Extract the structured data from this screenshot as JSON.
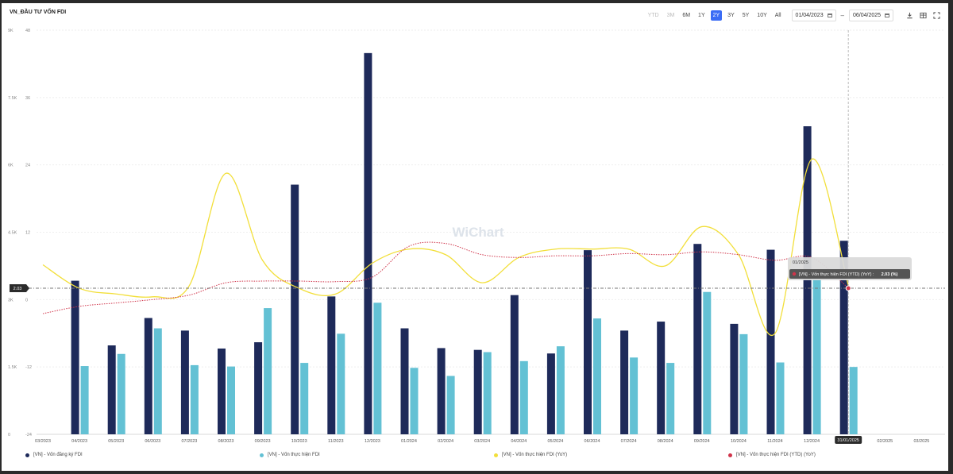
{
  "title": "VN_ĐẦU TƯ VỐN FDI",
  "toolbar": {
    "ranges": [
      {
        "label": "YTD",
        "state": "disabled"
      },
      {
        "label": "3M",
        "state": "disabled"
      },
      {
        "label": "6M",
        "state": "normal"
      },
      {
        "label": "1Y",
        "state": "normal"
      },
      {
        "label": "2Y",
        "state": "active"
      },
      {
        "label": "3Y",
        "state": "normal"
      },
      {
        "label": "5Y",
        "state": "normal"
      },
      {
        "label": "10Y",
        "state": "normal"
      },
      {
        "label": "All",
        "state": "normal"
      }
    ],
    "date_from": "01/04/2023",
    "date_separator": "–",
    "date_to": "06/04/2025",
    "icons": [
      "download-icon",
      "table-icon",
      "fullscreen-icon"
    ]
  },
  "watermark": "WiChart",
  "colors": {
    "registered": "#1e2a5a",
    "realized": "#63c1d4",
    "realized_yoy": "#f2df3a",
    "realized_ytd_yoy": "#d0344a",
    "accent": "#3b6cf5"
  },
  "chart_data": {
    "type": "bar",
    "categories": [
      "03/2023",
      "04/2023",
      "05/2023",
      "06/2023",
      "07/2023",
      "08/2023",
      "09/2023",
      "10/2023",
      "11/2023",
      "12/2023",
      "01/2024",
      "02/2024",
      "03/2024",
      "04/2024",
      "05/2024",
      "06/2024",
      "07/2024",
      "08/2024",
      "09/2024",
      "10/2024",
      "11/2024",
      "12/2024",
      "01/2025",
      "02/2025",
      "03/2025"
    ],
    "left_axis": {
      "ticks": [
        "0",
        "1.5K",
        "3K",
        "4.5K",
        "6K",
        "7.5K",
        "9K"
      ],
      "range": [
        0,
        9000
      ]
    },
    "right_axis": {
      "ticks": [
        "-24",
        "-12",
        "0",
        "12",
        "24",
        "36",
        "48"
      ],
      "range": [
        -24,
        48
      ]
    },
    "series": [
      {
        "name": "[VN] - Vốn đăng ký FDI",
        "type": "bar",
        "axis": "left",
        "values": [
          null,
          3420,
          1980,
          2590,
          2310,
          1910,
          2050,
          5560,
          3070,
          8490,
          2360,
          1920,
          1880,
          3100,
          1800,
          4100,
          2310,
          2510,
          4240,
          2460,
          4110,
          6860,
          4310,
          null,
          null
        ]
      },
      {
        "name": "[VN] - Vốn thực hiện FDI",
        "type": "bar",
        "axis": "left",
        "values": [
          null,
          1520,
          1790,
          2360,
          1540,
          1510,
          2810,
          1590,
          2240,
          2930,
          1480,
          1300,
          1830,
          1630,
          1960,
          2580,
          1710,
          1590,
          3170,
          2230,
          1600,
          3520,
          1500,
          null,
          null
        ]
      },
      {
        "name": "[VN] - Vốn thực hiện FDI (YoY)",
        "type": "line",
        "axis": "right",
        "smooth": true,
        "values": [
          6.2,
          2,
          1,
          0.5,
          2.5,
          22.5,
          7,
          2,
          1,
          6.5,
          9,
          8,
          3,
          7.5,
          9,
          9,
          9,
          6,
          13,
          8,
          -6,
          25,
          2.5,
          null,
          null
        ]
      },
      {
        "name": "[VN] - Vốn thực hiện FDI (YTD) (YoY)",
        "type": "line",
        "axis": "right",
        "dashed": true,
        "values": [
          -2.5,
          -1.2,
          -0.6,
          0,
          0.8,
          3,
          3.3,
          3.3,
          3.2,
          4,
          9.5,
          10,
          8,
          7.5,
          7.8,
          7.8,
          8.2,
          8,
          8.5,
          8,
          7,
          7.5,
          2.03,
          null,
          null
        ]
      }
    ],
    "crosshair": {
      "x_label": "31/01/2025",
      "y_label": "2.03"
    },
    "tooltip": {
      "date": "01/2025",
      "series": "[VN] - Vốn thực hiện FDI (YTD) (YoY)",
      "value_text": "2.03 (%)"
    },
    "grid": true,
    "legend_position": "bottom"
  }
}
